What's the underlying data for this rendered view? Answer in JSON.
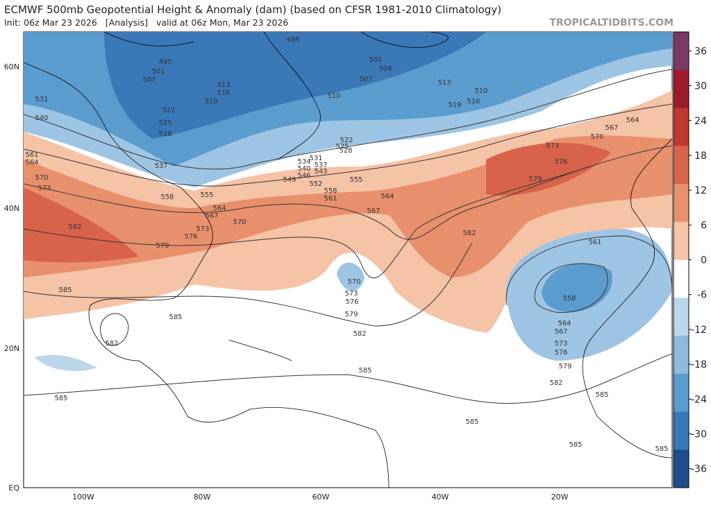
{
  "header": {
    "title": "ECMWF 500mb Geopotential Height & Anomaly (dam) (based on CFSR 1981-2010 Climatology)",
    "subtitle": "Init: 06z Mar 23 2026   [Analysis]   valid at 06z Mon, Mar 23 2026",
    "credit": "TROPICALTIDBITS.COM"
  },
  "map": {
    "lat_labels": [
      "60N",
      "40N",
      "20N",
      "EQ"
    ],
    "lon_labels": [
      "100W",
      "80W",
      "60W",
      "40W",
      "20W"
    ],
    "contour_labels": [
      498,
      495,
      501,
      507,
      501,
      504,
      507,
      513,
      516,
      519,
      510,
      513,
      510,
      516,
      519,
      531,
      522,
      540,
      525,
      528,
      522,
      525,
      528,
      561,
      564,
      537,
      534,
      531,
      537,
      540,
      543,
      546,
      549,
      552,
      558,
      555,
      570,
      573,
      558,
      555,
      561,
      564,
      567,
      564,
      567,
      570,
      573,
      582,
      576,
      579,
      582,
      573,
      576,
      579,
      570,
      567,
      564,
      561,
      585,
      585,
      570,
      573,
      576,
      579,
      582,
      582,
      558,
      564,
      567,
      573,
      576,
      579,
      582,
      585,
      585,
      585,
      585,
      585,
      585
    ]
  },
  "colorbar": {
    "ticks": [
      36,
      30,
      24,
      18,
      12,
      6,
      0,
      -6,
      -12,
      -18,
      -24,
      -30,
      -36
    ],
    "colors": [
      "#7a3a66",
      "#9e1b2a",
      "#c0392f",
      "#d8634a",
      "#e8906b",
      "#f5c3a6",
      "#ffffff",
      "#bcd6ea",
      "#8db9dd",
      "#5b9ccf",
      "#3a78b8",
      "#1e4f8c"
    ]
  }
}
